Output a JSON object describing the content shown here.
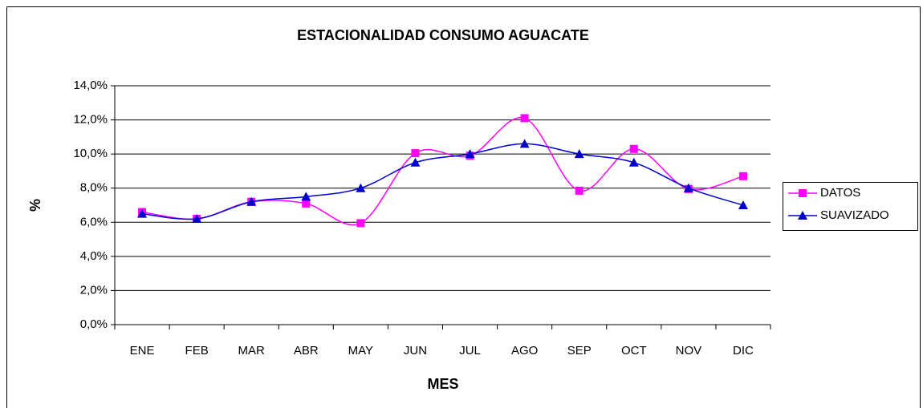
{
  "chart_data": {
    "type": "line",
    "title": "ESTACIONALIDAD CONSUMO AGUACATE",
    "x_label": "MES",
    "y_label": "%",
    "categories": [
      "ENE",
      "FEB",
      "MAR",
      "ABR",
      "MAY",
      "JUN",
      "JUL",
      "AGO",
      "SEP",
      "OCT",
      "NOV",
      "DIC"
    ],
    "series": [
      {
        "name": "DATOS",
        "color": "#ff00ff",
        "marker": "square",
        "values": [
          6.6,
          6.2,
          7.2,
          7.1,
          5.95,
          10.05,
          9.9,
          12.1,
          7.85,
          10.3,
          7.95,
          8.7
        ]
      },
      {
        "name": "SUAVIZADO",
        "color": "#0000cc",
        "marker": "triangle",
        "values": [
          6.5,
          6.2,
          7.2,
          7.5,
          8.0,
          9.5,
          10.0,
          10.6,
          10.0,
          9.5,
          8.0,
          7.0
        ]
      }
    ],
    "smooth": true,
    "ylim": [
      0,
      14
    ],
    "yticks": [
      {
        "value": 0,
        "label": "0,0%"
      },
      {
        "value": 2,
        "label": "2,0%"
      },
      {
        "value": 4,
        "label": "4,0%"
      },
      {
        "value": 6,
        "label": "6,0%"
      },
      {
        "value": 8,
        "label": "8,0%"
      },
      {
        "value": 10,
        "label": "10,0%"
      },
      {
        "value": 12,
        "label": "12,0%"
      },
      {
        "value": 14,
        "label": "14,0%"
      }
    ],
    "grid": true,
    "legend": "right"
  }
}
